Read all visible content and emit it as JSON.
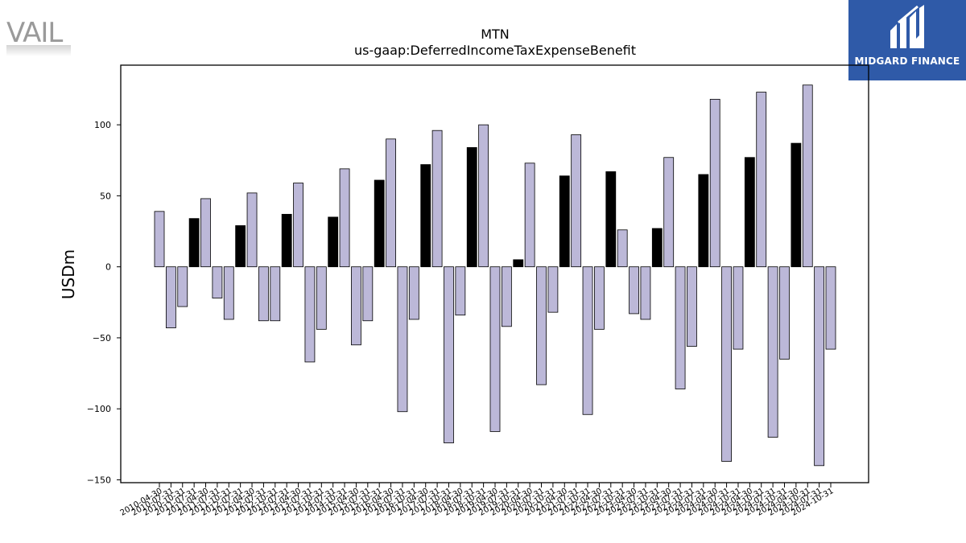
{
  "branding": {
    "left_logo": "VAIL",
    "right_logo": "MIDGARD FINANCE",
    "right_logo_bg": "#2f5aa8"
  },
  "chart_data": {
    "type": "bar",
    "title": "MTN",
    "subtitle": "us-gaap:DeferredIncomeTaxExpenseBenefit",
    "xlabel": "",
    "ylabel": "USDm",
    "ylim": [
      -152,
      142
    ],
    "yticks": [
      -150,
      -100,
      -50,
      0,
      50,
      100
    ],
    "grid": false,
    "legend": "none",
    "colors": {
      "annual": "#000000",
      "quarterly": "#bcb8d8",
      "edge": "#000000"
    },
    "categories": [
      "2010-04-30",
      "2010-07-31",
      "2010-10-31",
      "2011-07-31",
      "2011-04-30",
      "2011-07-31",
      "2011-10-31",
      "2012-07-31",
      "2012-04-30",
      "2012-07-31",
      "2012-10-31",
      "2013-07-31",
      "2013-04-30",
      "2013-07-31",
      "2013-10-31",
      "2014-07-31",
      "2014-10-31",
      "2015-04-30",
      "2015-07-31",
      "2015-10-31",
      "2016-04-30",
      "2016-07-31",
      "2016-10-31",
      "2017-04-30",
      "2017-07-31",
      "2017-10-31",
      "2018-04-30",
      "2018-07-31",
      "2018-10-31",
      "2019-04-30",
      "2019-07-31",
      "2019-10-31",
      "2020-04-30",
      "2020-07-31",
      "2020-10-31",
      "2021-04-30",
      "2021-07-31",
      "2021-10-31",
      "2022-04-30",
      "2022-07-31",
      "2022-10-31",
      "2023-04-30",
      "2023-07-31",
      "2023-10-31",
      "2023-04-30",
      "2023-07-31",
      "2023-10-31",
      "2024-07-31",
      "2024-04-30",
      "2024-07-31",
      "2024-10-31",
      "2024-04-30",
      "2024-10-31",
      "2024-07-31",
      "2024-10-31",
      "2024-04-30",
      "2024-10-31",
      "2024-07-31",
      "2024-10-31"
    ],
    "values": [
      39,
      -43,
      -28,
      34,
      48,
      -22,
      -37,
      29,
      52,
      -38,
      -38,
      37,
      59,
      -67,
      -44,
      35,
      69,
      -55,
      -38,
      61,
      90,
      -102,
      -37,
      72,
      96,
      -124,
      -34,
      84,
      100,
      -116,
      -42,
      5,
      73,
      -83,
      -32,
      64,
      93,
      -104,
      -44,
      67,
      26,
      -33,
      -37,
      27,
      77,
      -86,
      -56,
      65,
      118,
      -137,
      -58,
      77,
      123,
      -120,
      -65,
      87,
      128,
      -140,
      -58
    ],
    "annual_flags": [
      0,
      0,
      0,
      1,
      0,
      0,
      0,
      1,
      0,
      0,
      0,
      1,
      0,
      0,
      0,
      1,
      0,
      0,
      0,
      1,
      0,
      0,
      0,
      1,
      0,
      0,
      0,
      1,
      0,
      0,
      0,
      1,
      0,
      0,
      0,
      1,
      0,
      0,
      0,
      1,
      0,
      0,
      0,
      1,
      0,
      0,
      0,
      1,
      0,
      0,
      0,
      1,
      0,
      0,
      0,
      1,
      0,
      0,
      0
    ]
  }
}
